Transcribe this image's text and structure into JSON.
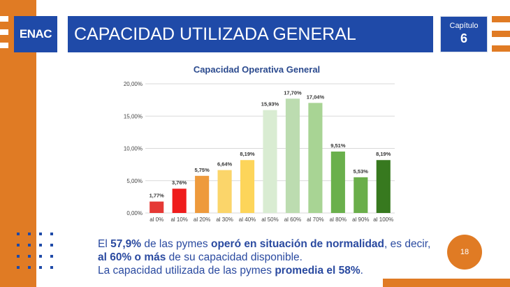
{
  "slide": {
    "logo": "ENAC",
    "title": "CAPACIDAD UTILIZADA GENERAL",
    "chapter_label": "Capítulo",
    "chapter_number": "6",
    "page_number": "18",
    "colors": {
      "blue": "#1f4aa8",
      "orange": "#e07b24"
    }
  },
  "summary": {
    "p1_a": "El ",
    "p1_b": "57,9%",
    "p1_c": " de las pymes ",
    "p1_d": "operó en situación de normalidad",
    "p1_e": ", es decir, ",
    "p1_f": "al 60% o más",
    "p1_g": " de su capacidad disponible.",
    "p2_a": "La capacidad utilizada de las pymes ",
    "p2_b": "promedia el 58%",
    "p2_c": "."
  },
  "chart_data": {
    "type": "bar",
    "title": "Capacidad Operativa General",
    "categories": [
      "al 0%",
      "al 10%",
      "al 20%",
      "al 30%",
      "al 40%",
      "al 50%",
      "al 60%",
      "al 70%",
      "al 80%",
      "al 90%",
      "al 100%"
    ],
    "values": [
      1.77,
      3.76,
      5.75,
      6.64,
      8.19,
      15.93,
      17.7,
      17.04,
      9.51,
      5.53,
      8.19
    ],
    "value_labels": [
      "1,77%",
      "3,76%",
      "5,75%",
      "6,64%",
      "8,19%",
      "15,93%",
      "17,70%",
      "17,04%",
      "9,51%",
      "5,53%",
      "8,19%"
    ],
    "colors": [
      "#e53935",
      "#ef1c1c",
      "#ee9a3c",
      "#fbd56a",
      "#fdd55a",
      "#d9ecd2",
      "#bcdcb0",
      "#a8d494",
      "#6ab04c",
      "#6aae4a",
      "#37791f"
    ],
    "yticks": [
      0,
      5,
      10,
      15,
      20
    ],
    "ytick_labels": [
      "0,00%",
      "5,00%",
      "10,00%",
      "15,00%",
      "20,00%"
    ],
    "ylim": [
      0,
      20
    ],
    "grid": true
  }
}
